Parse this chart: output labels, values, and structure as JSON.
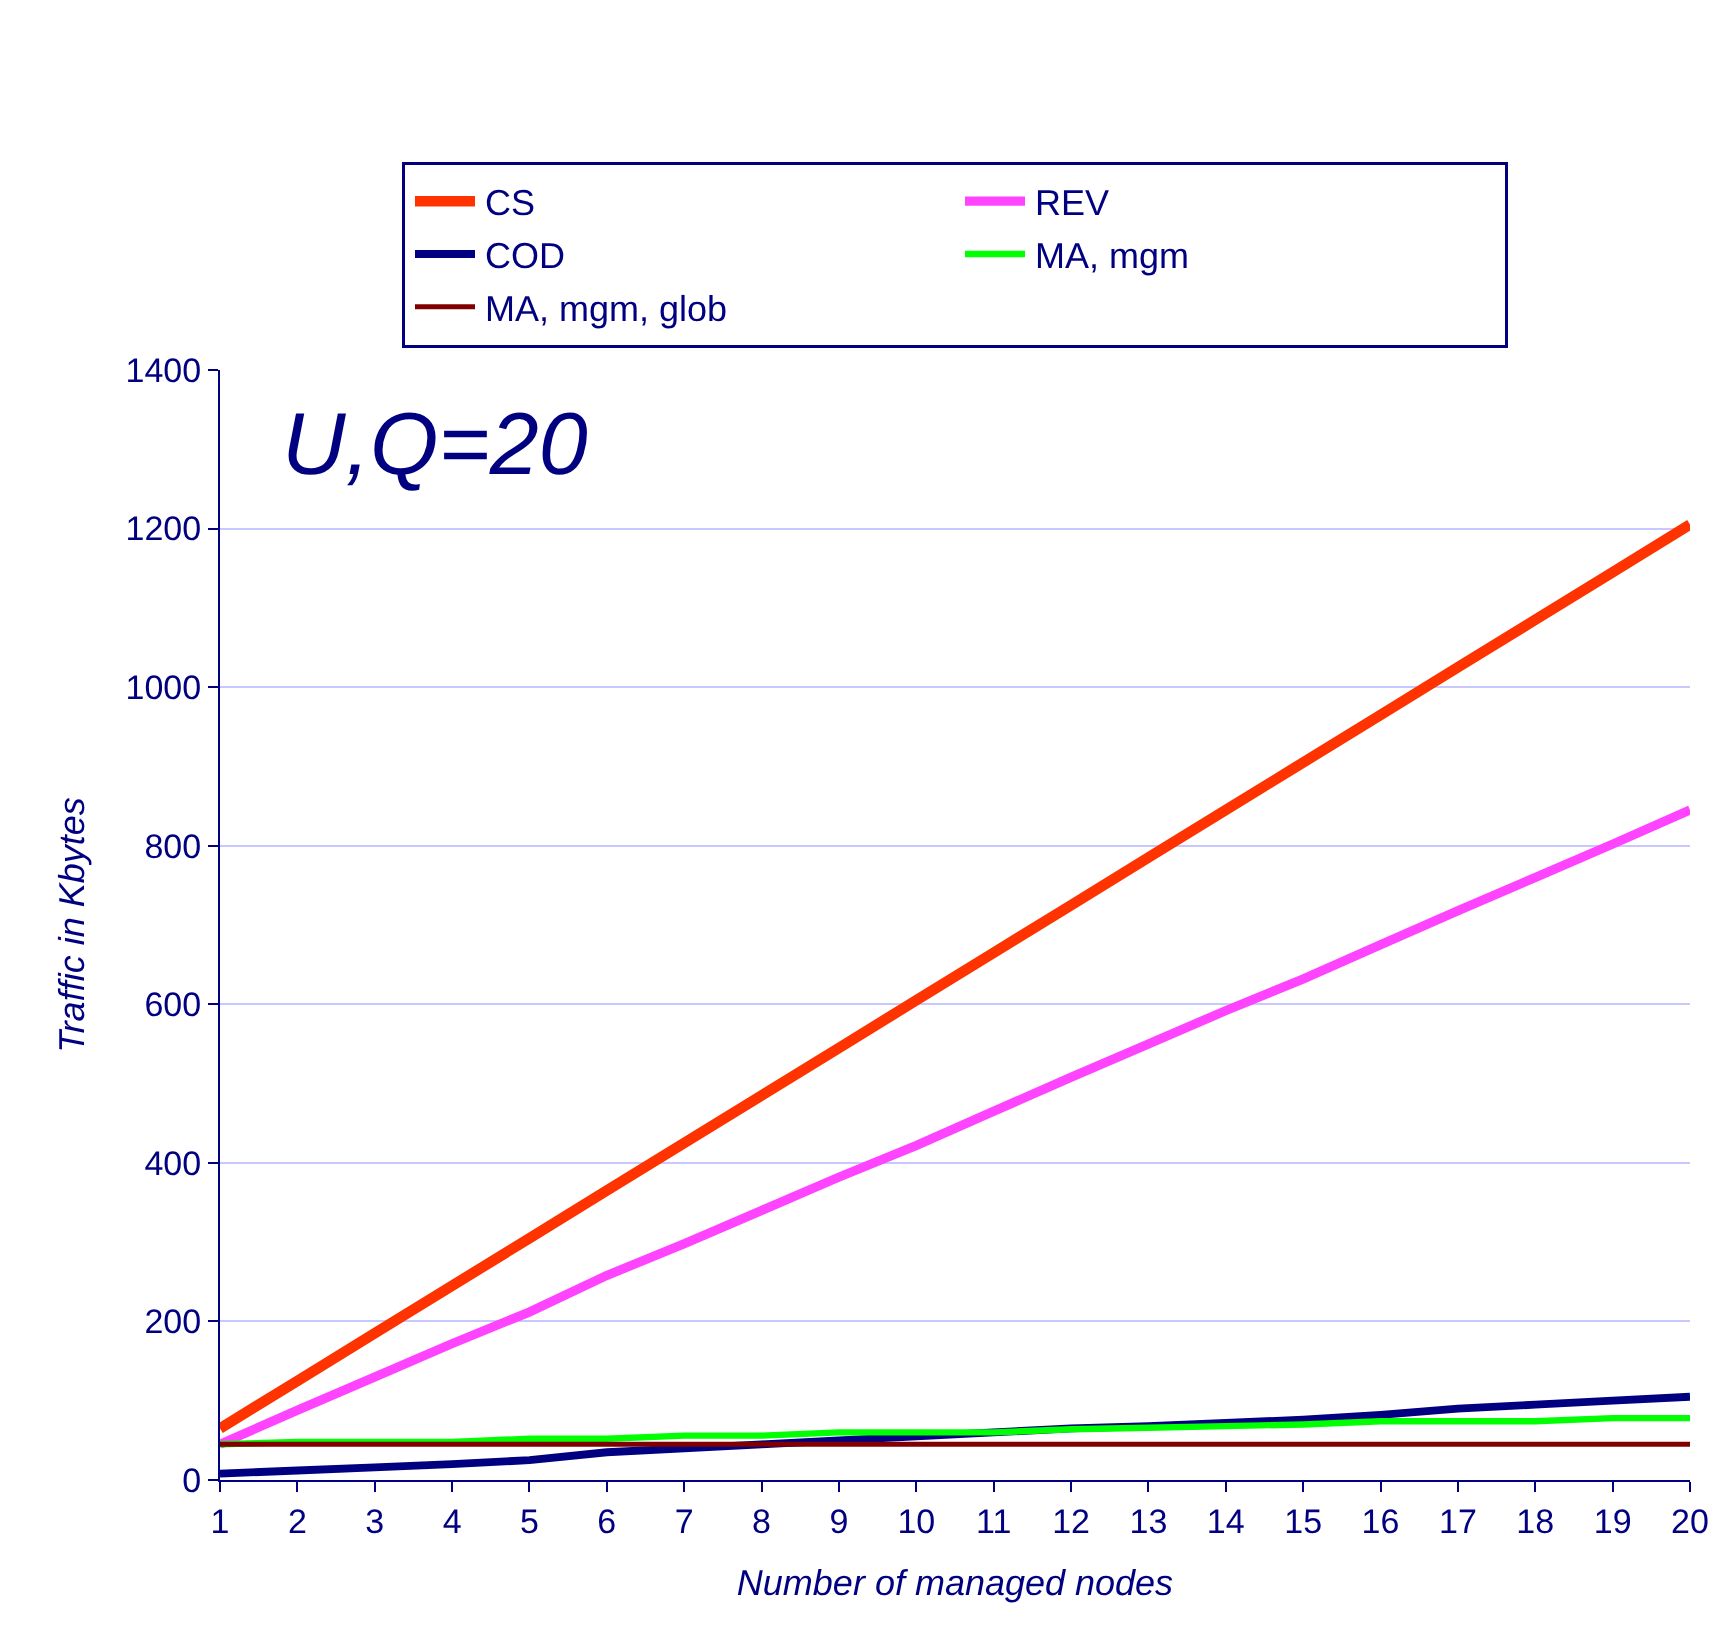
{
  "chart_data": {
    "type": "line",
    "title": "U,Q=20",
    "xlabel": "Number of managed nodes",
    "ylabel": "Traffic in Kbytes",
    "x": [
      1,
      2,
      3,
      4,
      5,
      6,
      7,
      8,
      9,
      10,
      11,
      12,
      13,
      14,
      15,
      16,
      17,
      18,
      19,
      20
    ],
    "series": [
      {
        "name": "CS",
        "color": "#ff3300",
        "values": [
          65,
          125,
          185,
          245,
          305,
          365,
          425,
          485,
          545,
          605,
          665,
          725,
          785,
          845,
          905,
          965,
          1025,
          1085,
          1145,
          1205
        ]
      },
      {
        "name": "REV",
        "color": "#ff44ff",
        "values": [
          45,
          88,
          130,
          172,
          212,
          258,
          298,
          340,
          382,
          422,
          465,
          508,
          550,
          592,
          632,
          675,
          718,
          760,
          802,
          845
        ]
      },
      {
        "name": "COD",
        "color": "#000080",
        "values": [
          8,
          12,
          16,
          20,
          25,
          35,
          40,
          45,
          50,
          55,
          60,
          65,
          68,
          72,
          76,
          82,
          90,
          95,
          100,
          105
        ]
      },
      {
        "name": "MA, mgm",
        "color": "#00ff00",
        "values": [
          45,
          48,
          48,
          48,
          52,
          52,
          56,
          56,
          60,
          60,
          60,
          64,
          66,
          68,
          70,
          74,
          74,
          74,
          78,
          78
        ]
      },
      {
        "name": "MA, mgm, glob",
        "color": "#800000",
        "values": [
          45,
          45,
          45,
          45,
          45,
          45,
          45,
          45,
          45,
          45,
          45,
          45,
          45,
          45,
          45,
          45,
          45,
          45,
          45,
          45
        ]
      }
    ],
    "xlim": [
      1,
      20
    ],
    "xticks": [
      1,
      2,
      3,
      4,
      5,
      6,
      7,
      8,
      9,
      10,
      11,
      12,
      13,
      14,
      15,
      16,
      17,
      18,
      19,
      20
    ],
    "ylim": [
      0,
      1400
    ],
    "yticks": [
      0,
      200,
      400,
      600,
      800,
      1000,
      1200,
      1400
    ],
    "grid": "y",
    "legend": "top",
    "marker": "none",
    "line_style": "solid"
  }
}
